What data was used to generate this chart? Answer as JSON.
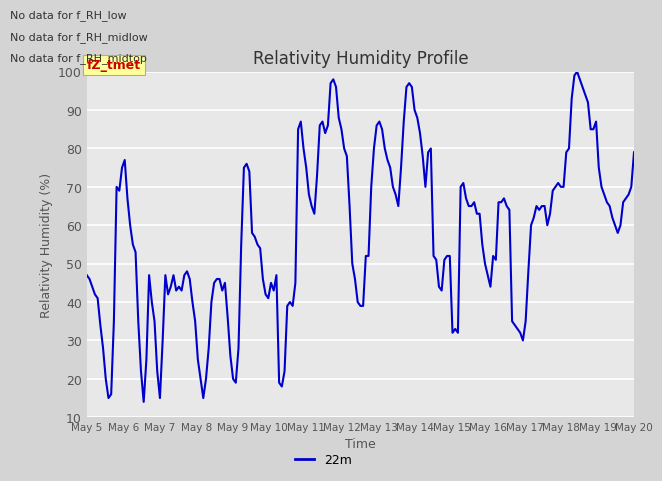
{
  "title": "Relativity Humidity Profile",
  "xlabel": "Time",
  "ylabel": "Relativity Humidity (%)",
  "ylim": [
    10,
    100
  ],
  "yticks": [
    10,
    20,
    30,
    40,
    50,
    60,
    70,
    80,
    90,
    100
  ],
  "line_color": "#0000cc",
  "line_width": 1.5,
  "legend_label": "22m",
  "text_annotations": [
    "No data for f_RH_low",
    "No data for f_RH_midlow",
    "No data for f_RH_midtop"
  ],
  "watermark_text": "fZ_tmet",
  "x_tick_labels": [
    "May 5",
    "May 6",
    "May 7",
    "May 8",
    "May 9",
    "May 10",
    "May 11",
    "May 12",
    "May 13",
    "May 14",
    "May 15",
    "May 16",
    "May 17",
    "May 18",
    "May 19",
    "May 20"
  ],
  "fig_bg_color": "#d4d4d4",
  "plot_bg_color": "#e8e8e8",
  "rh_values": [
    47,
    46,
    44,
    42,
    41,
    34,
    28,
    20,
    15,
    16,
    35,
    70,
    69,
    75,
    77,
    67,
    60,
    55,
    53,
    35,
    22,
    14,
    25,
    47,
    40,
    35,
    22,
    15,
    30,
    47,
    42,
    44,
    47,
    43,
    44,
    43,
    47,
    48,
    46,
    40,
    35,
    25,
    20,
    15,
    20,
    28,
    40,
    45,
    46,
    46,
    43,
    45,
    36,
    26,
    20,
    19,
    28,
    55,
    75,
    76,
    74,
    58,
    57,
    55,
    54,
    46,
    42,
    41,
    45,
    43,
    47,
    19,
    18,
    22,
    39,
    40,
    39,
    45,
    85,
    87,
    80,
    75,
    68,
    65,
    63,
    73,
    86,
    87,
    84,
    86,
    97,
    98,
    96,
    88,
    85,
    80,
    78,
    65,
    50,
    46,
    40,
    39,
    39,
    52,
    52,
    70,
    80,
    86,
    87,
    85,
    80,
    77,
    75,
    70,
    68,
    65,
    75,
    87,
    96,
    97,
    96,
    90,
    88,
    84,
    78,
    70,
    79,
    80,
    52,
    51,
    44,
    43,
    51,
    52,
    52,
    32,
    33,
    32,
    70,
    71,
    67,
    65,
    65,
    66,
    63,
    63,
    55,
    50,
    47,
    44,
    52,
    51,
    66,
    66,
    67,
    65,
    64,
    35,
    34,
    33,
    32,
    30,
    35,
    48,
    60,
    62,
    65,
    64,
    65,
    65,
    60,
    63,
    69,
    70,
    71,
    70,
    70,
    79,
    80,
    93,
    99,
    100,
    98,
    96,
    94,
    92,
    85,
    85,
    87,
    75,
    70,
    68,
    66,
    65,
    62,
    60,
    58,
    60,
    66,
    67,
    68,
    70,
    79
  ]
}
